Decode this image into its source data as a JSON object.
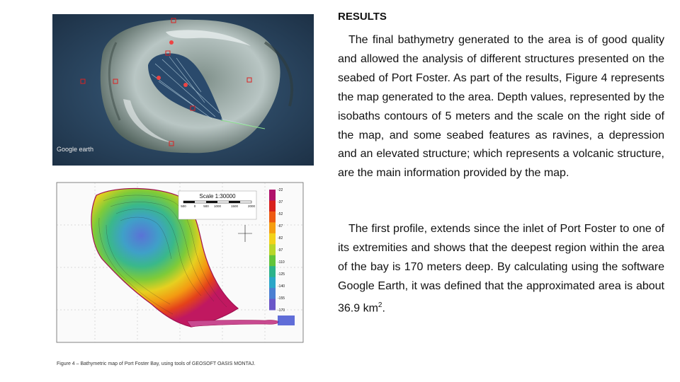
{
  "section": {
    "heading": "RESULTS",
    "paragraph1": "The final bathymetry generated to the area is of good quality and allowed the analysis of different structures presented on the seabed of Port Foster. As part of the results, Figure 4 represents the map generated to the area. Depth values, represented by the isobaths contours of 5 meters and the scale on the right side of the map, and some seabed features as ravines, a depression and an elevated structure; which represents a volcanic structure, are the main information provided by the map.",
    "paragraph2_before": "The first profile, extends since the inlet of Port Foster to one of its extremities and shows that the deepest region within the area of the bay is 170 meters deep. By calculating using the software Google Earth, it was defined that the approximated area is about 36.9 km",
    "paragraph2_sup": "2",
    "paragraph2_after": "."
  },
  "figure": {
    "caption": "Figure 4 – Bathymetric map of Port Foster Bay, using tools of GEOSOFT OASIS MONTAJ.",
    "satellite_logo": "Google earth",
    "scale_title": "Scale 1:30000",
    "scale_ticks": [
      "500",
      "0",
      "500",
      "1000",
      "1500",
      "2000"
    ],
    "depth_legend": [
      "-22",
      "-37",
      "-52",
      "-67",
      "-82",
      "-97",
      "-110",
      "-125",
      "-140",
      "-155",
      "-170"
    ],
    "legend_colors": [
      "#b0106a",
      "#d8201c",
      "#ee5a12",
      "#f59e10",
      "#f2d21a",
      "#b8d62a",
      "#62c43a",
      "#2cb38a",
      "#2aa6c8",
      "#4a7fd2",
      "#6a56c8"
    ]
  }
}
